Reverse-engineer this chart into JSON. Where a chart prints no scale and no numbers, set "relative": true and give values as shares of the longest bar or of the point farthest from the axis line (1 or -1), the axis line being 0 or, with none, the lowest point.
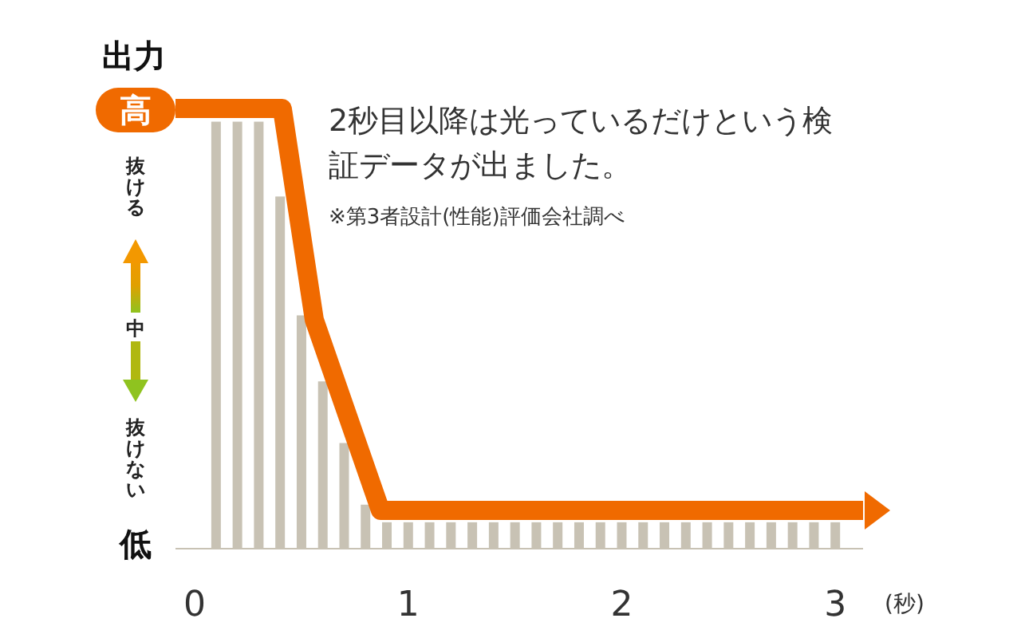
{
  "chart_data": {
    "type": "line",
    "relative": true,
    "ylabel": "出力",
    "xlabel": "(秒)",
    "xlim": [
      -0.09,
      3.13
    ],
    "xticks": [
      0,
      1,
      2,
      3
    ],
    "grid": false,
    "series": [
      {
        "type": "bar",
        "color": "#c8c2b4",
        "x": [
          0.1,
          0.2,
          0.3,
          0.4,
          0.5,
          0.6,
          0.7,
          0.8,
          0.9,
          1.0,
          1.1,
          1.2,
          1.3,
          1.4,
          1.5,
          1.6,
          1.7,
          1.8,
          1.9,
          2.0,
          2.1,
          2.2,
          2.3,
          2.4,
          2.5,
          2.6,
          2.7,
          2.8,
          2.9,
          3.0
        ],
        "values": [
          0.97,
          0.97,
          0.97,
          0.8,
          0.53,
          0.38,
          0.24,
          0.1,
          0.06,
          0.06,
          0.06,
          0.06,
          0.06,
          0.06,
          0.06,
          0.06,
          0.06,
          0.06,
          0.06,
          0.06,
          0.06,
          0.06,
          0.06,
          0.06,
          0.06,
          0.06,
          0.06,
          0.06,
          0.06,
          0.06
        ]
      },
      {
        "color": "#f06a00",
        "x": [
          -0.09,
          0.41,
          0.56,
          0.87,
          3.13
        ],
        "values": [
          1,
          1,
          0.52,
          0.087,
          0.087
        ]
      }
    ],
    "annotations": [
      "高",
      "抜ける",
      "中",
      "抜けない",
      "低",
      "2秒目以降は光っているだけという検証データが出ました。",
      "※第3者設計(性能)評価会社調べ"
    ]
  }
}
